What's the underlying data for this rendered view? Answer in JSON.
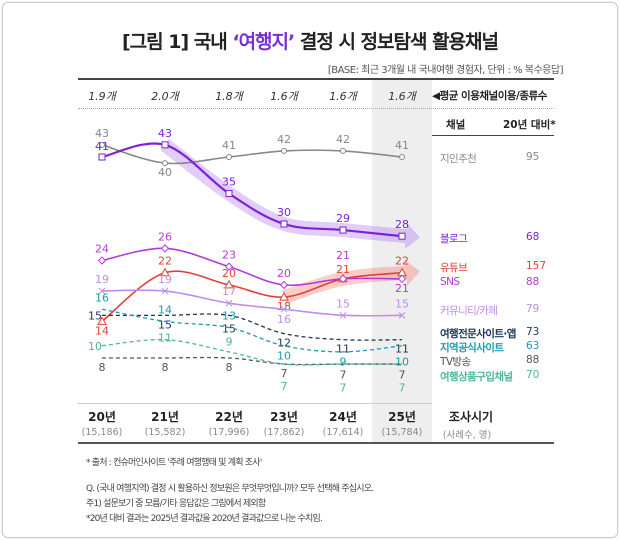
{
  "title_prefix": "[그림 1] 국내 ",
  "title_highlight": "‘여행지’",
  "title_suffix": " 결정 시 정보탐색 활용채널",
  "base": "[BASE: 최근 3개월 내 국내여행 경험자, 단위 : % 복수응답]",
  "avg_counts": [
    "1.9개",
    "2.0개",
    "1.8개",
    "1.6개",
    "1.6개",
    "1.6개"
  ],
  "avg_label": "◀평균 이용채널이용/종류수",
  "table_headers": {
    "channel": "채널",
    "vs20": "20년 대비*"
  },
  "years": [
    "20년",
    "21년",
    "22년",
    "23년",
    "24년",
    "25년"
  ],
  "samples": [
    "(15,186)",
    "(15,582)",
    "(17,996)",
    "(17,862)",
    "(17,614)",
    "(15,784)"
  ],
  "x_axis_label": "조사시기",
  "x_axis_sub": "(사례수, 명)",
  "footnotes": [
    "* 출처 : 컨슈머인사이트 '주례 여행행태 및 계획 조사'",
    "Q. (국내 여행지역) 결정 시 활용하신 정보원은 무엇무엇입니까? 모두 선택해 주십시오.",
    "주1) 설문보기 중 모름/기타 응답값은 그림에서 제외함",
    "*20년 대비 결과는 2025년 결과값을 2020년 결과값으로 나눈 수치임."
  ],
  "chart_data": {
    "type": "line",
    "categories": [
      "20년",
      "21년",
      "22년",
      "23년",
      "24년",
      "25년"
    ],
    "ylabel": "%",
    "highlighted_category": "25년",
    "series": [
      {
        "name": "지인추천",
        "values": [
          43,
          40,
          41,
          42,
          42,
          41
        ],
        "vs20": "95",
        "color": "#888888",
        "marker": "circle",
        "dashed": false
      },
      {
        "name": "블로그",
        "values": [
          41,
          43,
          35,
          30,
          29,
          28
        ],
        "vs20": "68",
        "color": "#7a22d6",
        "marker": "square",
        "dashed": false,
        "trend_arrow": true
      },
      {
        "name": "유튜브",
        "values": [
          14,
          22,
          20,
          18,
          21,
          22
        ],
        "vs20": "157",
        "color": "#e0403a",
        "marker": "triangle",
        "dashed": false,
        "trend_arrow": true
      },
      {
        "name": "SNS",
        "values": [
          24,
          26,
          23,
          20,
          21,
          21
        ],
        "vs20": "88",
        "color": "#b43ad8",
        "marker": "diamond",
        "dashed": false
      },
      {
        "name": "커뮤니티/카페",
        "values": [
          19,
          19,
          17,
          16,
          15,
          15
        ],
        "vs20": "79",
        "color": "#c28ce8",
        "marker": "x",
        "dashed": false
      },
      {
        "name": "여행전문사이트·앱",
        "values": [
          15,
          15,
          15,
          12,
          11,
          11
        ],
        "vs20": "73",
        "color": "#1f3556",
        "marker": "none",
        "dashed": true
      },
      {
        "name": "지역공식사이트",
        "values": [
          16,
          14,
          13,
          10,
          9,
          10
        ],
        "vs20": "63",
        "color": "#1a9bb0",
        "marker": "none",
        "dashed": true
      },
      {
        "name": "TV방송",
        "values": [
          8,
          8,
          8,
          7,
          7,
          7
        ],
        "vs20": "88",
        "color": "#555555",
        "marker": "none",
        "dashed": true
      },
      {
        "name": "여행상품구입채널",
        "values": [
          10,
          11,
          9,
          7,
          7,
          7
        ],
        "vs20": "70",
        "color": "#4fb59a",
        "marker": "none",
        "dashed": true
      }
    ]
  }
}
